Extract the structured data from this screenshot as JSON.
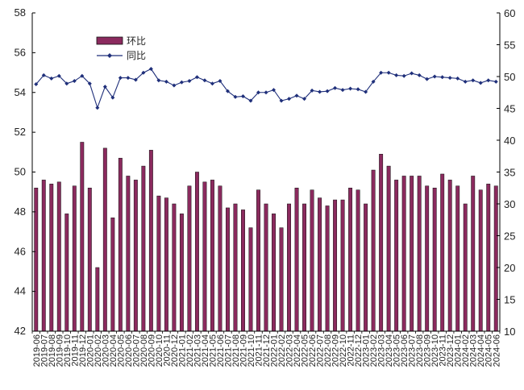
{
  "chart_data": {
    "type": "bar",
    "title": "",
    "xlabel": "",
    "ylabel": "",
    "ylim": [
      42,
      58
    ],
    "y2lim": [
      10,
      60
    ],
    "y_ticks": [
      42,
      44,
      46,
      48,
      50,
      52,
      54,
      56,
      58
    ],
    "y2_ticks": [
      10,
      15,
      20,
      25,
      30,
      35,
      40,
      45,
      50,
      55,
      60
    ],
    "grid": false,
    "legend_position": "top-left",
    "categories": [
      "2019-06",
      "2019-07",
      "2019-08",
      "2019-09",
      "2019-10",
      "2019-11",
      "2019-12",
      "2020-01",
      "2020-02",
      "2020-03",
      "2020-04",
      "2020-05",
      "2020-06",
      "2020-07",
      "2020-08",
      "2020-09",
      "2020-10",
      "2020-11",
      "2020-12",
      "2021-01",
      "2021-02",
      "2021-03",
      "2021-04",
      "2021-05",
      "2021-06",
      "2021-07",
      "2021-08",
      "2021-09",
      "2021-10",
      "2021-11",
      "2021-12",
      "2022-01",
      "2022-02",
      "2022-03",
      "2022-04",
      "2022-05",
      "2022-06",
      "2022-07",
      "2022-08",
      "2022-09",
      "2022-10",
      "2022-11",
      "2022-12",
      "2023-01",
      "2023-02",
      "2023-03",
      "2023-04",
      "2023-05",
      "2023-06",
      "2023-07",
      "2023-08",
      "2023-09",
      "2023-10",
      "2023-11",
      "2023-12",
      "2024-01",
      "2024-02",
      "2024-03",
      "2024-04",
      "2024-05",
      "2024-06"
    ],
    "series": [
      {
        "name": "环比",
        "type": "bar",
        "axis": "left",
        "color": "#8B2A5E",
        "values": [
          49.2,
          49.6,
          49.4,
          49.5,
          47.9,
          49.3,
          51.5,
          49.2,
          45.2,
          51.2,
          47.7,
          50.7,
          49.8,
          49.6,
          50.3,
          51.1,
          48.8,
          48.7,
          48.4,
          47.9,
          49.3,
          50.0,
          49.5,
          49.6,
          49.3,
          48.2,
          48.4,
          48.1,
          47.2,
          49.1,
          48.4,
          47.9,
          47.2,
          48.4,
          49.2,
          48.4,
          49.1,
          48.7,
          48.3,
          48.6,
          48.6,
          49.2,
          49.1,
          48.4,
          50.1,
          50.9,
          50.3,
          49.6,
          49.8,
          49.8,
          49.8,
          49.3,
          49.2,
          49.9,
          49.6,
          49.3,
          48.4,
          49.8,
          49.1,
          49.4,
          49.3
        ]
      },
      {
        "name": "同比",
        "type": "line",
        "axis": "right",
        "color": "#1F2F7A",
        "values": [
          48.8,
          50.2,
          49.7,
          50.1,
          48.9,
          49.3,
          50.1,
          48.9,
          45.1,
          48.4,
          46.7,
          49.8,
          49.8,
          49.5,
          50.6,
          51.2,
          49.4,
          49.2,
          48.6,
          49.1,
          49.3,
          49.9,
          49.4,
          48.9,
          49.3,
          47.7,
          46.8,
          46.9,
          46.2,
          47.5,
          47.5,
          47.9,
          46.2,
          46.5,
          47.0,
          46.5,
          47.8,
          47.6,
          47.7,
          48.2,
          47.9,
          48.1,
          48.0,
          47.6,
          49.2,
          50.6,
          50.6,
          50.2,
          50.1,
          50.5,
          50.2,
          49.6,
          50.0,
          49.9,
          49.8,
          49.7,
          49.2,
          49.4,
          49.0,
          49.4,
          49.2
        ]
      }
    ]
  }
}
